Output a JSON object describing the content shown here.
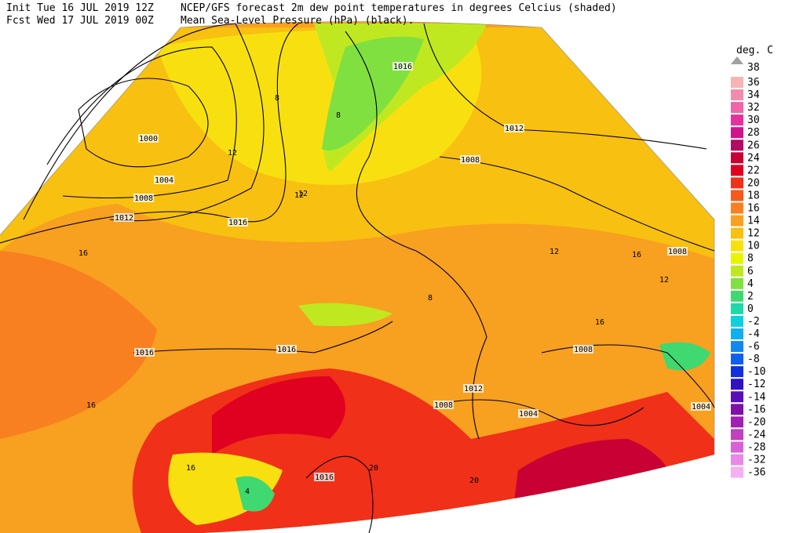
{
  "header": {
    "init": "Init  Tue 16 JUL 2019 12Z",
    "fcst": "Fcst Wed 17 JUL 2019 00Z",
    "title": "NCEP/GFS forecast 2m dew point temperatures in degrees Celcius (shaded)",
    "subtitle": "Mean Sea-Level Pressure (hPa) (black)."
  },
  "legend": {
    "title": "deg. C",
    "items": [
      {
        "label": "38",
        "color": "#a0a0a0"
      },
      {
        "label": "36",
        "color": "#f6b4b4"
      },
      {
        "label": "34",
        "color": "#f28cac"
      },
      {
        "label": "32",
        "color": "#f064a8"
      },
      {
        "label": "30",
        "color": "#e8309c"
      },
      {
        "label": "28",
        "color": "#d0148c"
      },
      {
        "label": "26",
        "color": "#b00c64"
      },
      {
        "label": "24",
        "color": "#c80034"
      },
      {
        "label": "22",
        "color": "#e00020"
      },
      {
        "label": "20",
        "color": "#f03018"
      },
      {
        "label": "18",
        "color": "#f85818"
      },
      {
        "label": "16",
        "color": "#f88020"
      },
      {
        "label": "14",
        "color": "#f8a020"
      },
      {
        "label": "12",
        "color": "#f8c010"
      },
      {
        "label": "10",
        "color": "#f8e010"
      },
      {
        "label": "8",
        "color": "#e8f400"
      },
      {
        "label": "6",
        "color": "#c0e820"
      },
      {
        "label": "4",
        "color": "#80e040"
      },
      {
        "label": "2",
        "color": "#40d870"
      },
      {
        "label": "0",
        "color": "#20d8a8"
      },
      {
        "label": "-2",
        "color": "#10d0e0"
      },
      {
        "label": "-4",
        "color": "#10b0f0"
      },
      {
        "label": "-6",
        "color": "#1088f0"
      },
      {
        "label": "-8",
        "color": "#1060f0"
      },
      {
        "label": "-10",
        "color": "#1030e0"
      },
      {
        "label": "-12",
        "color": "#3010c8"
      },
      {
        "label": "-14",
        "color": "#5810b8"
      },
      {
        "label": "-16",
        "color": "#8010a8"
      },
      {
        "label": "-20",
        "color": "#a020b0"
      },
      {
        "label": "-24",
        "color": "#c040c0"
      },
      {
        "label": "-28",
        "color": "#d860d8"
      },
      {
        "label": "-32",
        "color": "#e888e8"
      },
      {
        "label": "-36",
        "color": "#f4b0f4"
      }
    ]
  },
  "map": {
    "isobar_labels": [
      "1016",
      "1012",
      "1008",
      "1004",
      "1000",
      "1016",
      "1016",
      "1016",
      "1012",
      "1008",
      "1008",
      "1008",
      "1012",
      "1008",
      "1004",
      "1004",
      "1016"
    ],
    "dewpoint_labels": [
      "8",
      "8",
      "12",
      "12",
      "16",
      "12",
      "16",
      "12",
      "16",
      "8",
      "16",
      "20",
      "20",
      "4",
      "16",
      "12"
    ]
  }
}
